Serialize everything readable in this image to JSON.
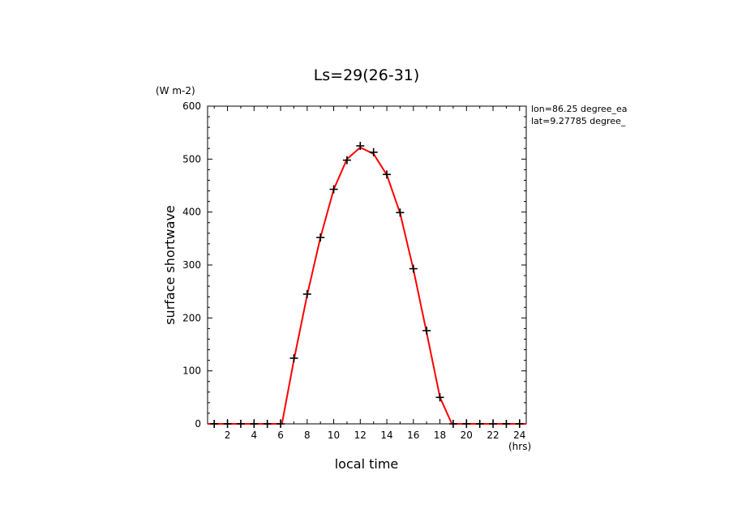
{
  "chart_data": {
    "type": "line",
    "title": "Ls=29(26-31)",
    "xlabel": "local time",
    "ylabel": "surface shortwave",
    "xunit": "(hrs)",
    "yunit": "(W m-2)",
    "xlim": [
      0.5,
      24.5
    ],
    "ylim": [
      0,
      600
    ],
    "xticks": [
      2,
      4,
      6,
      8,
      10,
      12,
      14,
      16,
      18,
      20,
      22,
      24
    ],
    "xtick_labels": [
      "2",
      "4",
      "6",
      "8",
      "10",
      "12",
      "14",
      "16",
      "18",
      "20",
      "22",
      "24"
    ],
    "yticks": [
      0,
      100,
      200,
      300,
      400,
      500,
      600
    ],
    "ytick_labels": [
      "0",
      "100",
      "200",
      "300",
      "400",
      "500",
      "600"
    ],
    "annotations": [
      "lon=86.25 degree_ea",
      "lat=9.27785 degree_"
    ],
    "grid": false,
    "series": [
      {
        "style": "line",
        "color": "#ff0000",
        "x": [
          0.5,
          5,
          6,
          6.1,
          7,
          8,
          9,
          10,
          11,
          12,
          13,
          14,
          15,
          16,
          17,
          18,
          18.9,
          19,
          24.5
        ],
        "values": [
          0,
          0,
          0,
          0,
          120,
          243,
          352,
          443,
          500,
          522,
          510,
          470,
          398,
          292,
          172,
          50,
          0,
          0,
          0
        ]
      },
      {
        "style": "markers",
        "marker": "plus",
        "color": "#000000",
        "x": [
          1,
          2,
          3,
          4,
          5,
          6,
          7,
          8,
          9,
          10,
          11,
          12,
          13,
          14,
          15,
          16,
          17,
          18,
          19,
          20,
          21,
          22,
          23,
          24
        ],
        "values": [
          0,
          0,
          0,
          0,
          0,
          0,
          124,
          245,
          352,
          443,
          498,
          525,
          513,
          471,
          399,
          293,
          176,
          50,
          0,
          0,
          0,
          0,
          0,
          0
        ]
      }
    ]
  }
}
